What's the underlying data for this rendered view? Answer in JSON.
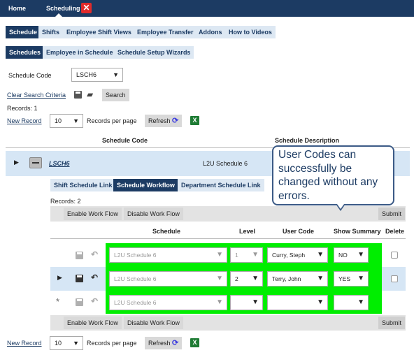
{
  "nav": {
    "home": "Home",
    "scheduling": "Scheduling"
  },
  "tabs": [
    "Schedule",
    "Shifts",
    "Employee Shift Views",
    "Employee Transfer",
    "Addons",
    "How to Videos"
  ],
  "subtabs": [
    "Schedules",
    "Employee in Schedule",
    "Schedule Setup Wizards"
  ],
  "search": {
    "schedule_code_label": "Schedule Code",
    "schedule_code_value": "LSCH6",
    "clear_label": "Clear Search Criteria",
    "search_button": "Search"
  },
  "records_top": "Records:  1",
  "pager": {
    "new_record": "New Record",
    "per_page_value": "10",
    "per_page_label": "Records per page",
    "refresh": "Refresh"
  },
  "table": {
    "col_code": "Schedule Code",
    "col_desc": "Schedule Description",
    "row": {
      "code": "LSCH6",
      "desc": "L2U Schedule 6"
    }
  },
  "detail_tabs": [
    "Shift Schedule Link",
    "Schedule Workflow",
    "Department Schedule Link"
  ],
  "records_inner": "Records:  2",
  "workflow": {
    "enable": "Enable Work Flow",
    "disable": "Disable Work Flow",
    "submit": "Submit",
    "headers": {
      "schedule": "Schedule",
      "level": "Level",
      "user_code": "User Code",
      "show_summary": "Show Summary",
      "delete": "Delete"
    },
    "rows": [
      {
        "schedule": "L2U Schedule 6",
        "level": "1",
        "user_code": "Curry, Steph",
        "show_summary": "NO"
      },
      {
        "schedule": "L2U Schedule 6",
        "level": "2",
        "user_code": "Terry, John",
        "show_summary": "YES"
      },
      {
        "schedule": "L2U Schedule 6",
        "level": "",
        "user_code": "",
        "show_summary": ""
      }
    ],
    "new_row_marker": "*"
  },
  "callout": "User Codes can successfully be changed without any errors.",
  "colors": {
    "nav_bg": "#1c3b63",
    "tab_bg": "#dde8f3",
    "highlight": "#00ee00",
    "close": "#e02b2b"
  }
}
